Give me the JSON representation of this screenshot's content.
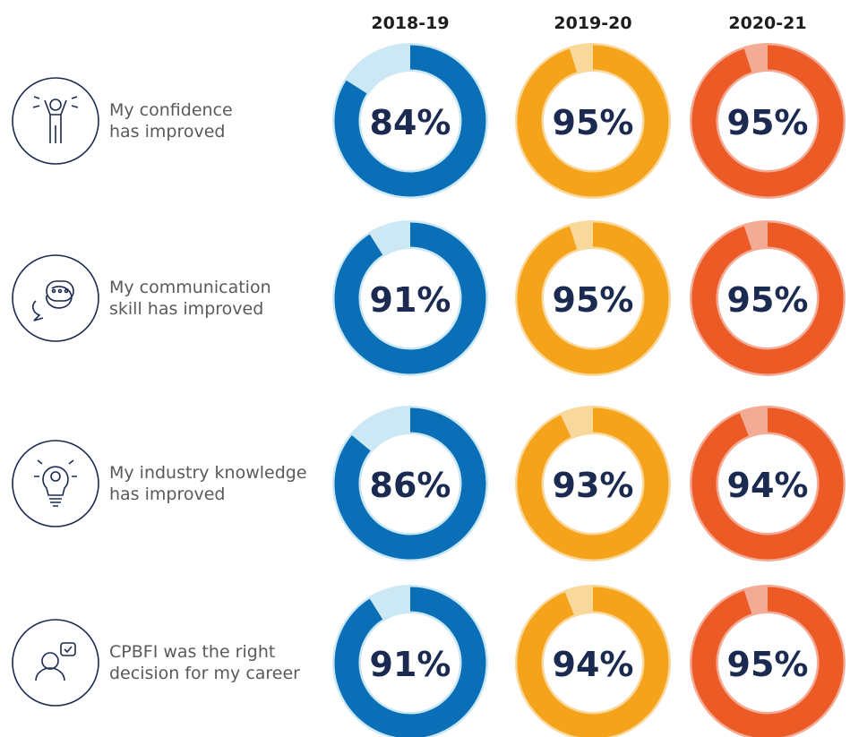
{
  "chart_data": {
    "type": "donut",
    "categories": [
      "My confidence\nhas improved",
      "My communication\nskill has improved",
      "My industry knowledge\nhas improved",
      "CPBFI was the right\ndecision for my career"
    ],
    "series": [
      {
        "name": "2018-19",
        "color": "#0a6fb7",
        "track_color": "#cbe8f4",
        "values": [
          84,
          91,
          86,
          91
        ],
        "value_labels": [
          "84%",
          "91%",
          "86%",
          "91%"
        ]
      },
      {
        "name": "2019-20",
        "color": "#f6a31c",
        "track_color": "#f9d89c",
        "values": [
          95,
          95,
          93,
          94
        ],
        "value_labels": [
          "95%",
          "95%",
          "93%",
          "94%"
        ]
      },
      {
        "name": "2020-21",
        "color": "#ec5a26",
        "track_color": "#f3ab95",
        "values": [
          95,
          95,
          94,
          95
        ],
        "value_labels": [
          "95%",
          "95%",
          "94%",
          "95%"
        ]
      }
    ]
  }
}
